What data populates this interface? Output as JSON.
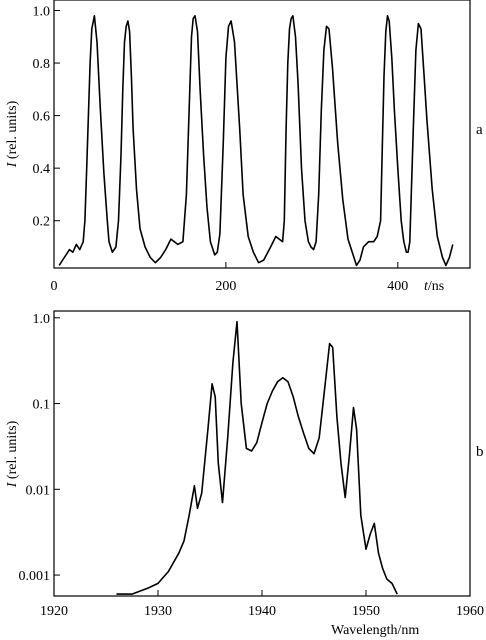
{
  "chart_data": [
    {
      "panel": "a",
      "type": "line",
      "xlabel_italic": "t",
      "xlabel_unit": "/ns",
      "ylabel_italic": "I",
      "ylabel_unit": " (rel. units)",
      "xlim": [
        0,
        484
      ],
      "ylim": [
        0.02,
        1.04
      ],
      "xticks": [
        0,
        200,
        400
      ],
      "yticks": [
        0.2,
        0.4,
        0.6,
        0.8,
        1.0
      ],
      "yticklabels": [
        "0.2",
        "0.4",
        "0.6",
        "0.8",
        "1.0"
      ],
      "series": [
        {
          "x": [
            6,
            12,
            18,
            22,
            26,
            30,
            34,
            36,
            38,
            40,
            42,
            44,
            47,
            50,
            54,
            58,
            62,
            64,
            66,
            68,
            72,
            75,
            78,
            80,
            82,
            84,
            86,
            88,
            90,
            92,
            96,
            100,
            106,
            112,
            118,
            124,
            130,
            136,
            144,
            150,
            154,
            158,
            160,
            162,
            164,
            167,
            170,
            174,
            178,
            182,
            185,
            187,
            190,
            193,
            197,
            200,
            203,
            206,
            210,
            216,
            220,
            226,
            232,
            238,
            244,
            252,
            258,
            262,
            266,
            268,
            270,
            272,
            274,
            276,
            278,
            281,
            284,
            288,
            292,
            296,
            299,
            302,
            305,
            308,
            311,
            314,
            317,
            320,
            324,
            330,
            336,
            342,
            348,
            352,
            356,
            360,
            366,
            372,
            376,
            380,
            382,
            384,
            386,
            388,
            390,
            393,
            396,
            400,
            404,
            407,
            410,
            412,
            414,
            418,
            421,
            424,
            427,
            430,
            434,
            440,
            446,
            452,
            456,
            460,
            464
          ],
          "y": [
            0.03,
            0.06,
            0.09,
            0.08,
            0.11,
            0.09,
            0.12,
            0.2,
            0.4,
            0.6,
            0.8,
            0.93,
            0.98,
            0.88,
            0.62,
            0.38,
            0.2,
            0.12,
            0.1,
            0.08,
            0.1,
            0.2,
            0.45,
            0.7,
            0.88,
            0.94,
            0.96,
            0.92,
            0.75,
            0.55,
            0.32,
            0.17,
            0.1,
            0.06,
            0.04,
            0.06,
            0.09,
            0.13,
            0.11,
            0.12,
            0.3,
            0.7,
            0.9,
            0.97,
            0.98,
            0.92,
            0.7,
            0.45,
            0.25,
            0.12,
            0.09,
            0.07,
            0.08,
            0.15,
            0.5,
            0.82,
            0.94,
            0.96,
            0.88,
            0.55,
            0.3,
            0.14,
            0.08,
            0.04,
            0.05,
            0.1,
            0.14,
            0.13,
            0.12,
            0.2,
            0.55,
            0.8,
            0.93,
            0.97,
            0.98,
            0.9,
            0.72,
            0.4,
            0.2,
            0.12,
            0.1,
            0.09,
            0.12,
            0.3,
            0.62,
            0.85,
            0.94,
            0.93,
            0.78,
            0.5,
            0.28,
            0.13,
            0.07,
            0.03,
            0.05,
            0.1,
            0.12,
            0.12,
            0.14,
            0.2,
            0.48,
            0.75,
            0.92,
            0.98,
            0.96,
            0.82,
            0.62,
            0.4,
            0.2,
            0.12,
            0.08,
            0.08,
            0.12,
            0.55,
            0.85,
            0.95,
            0.93,
            0.78,
            0.58,
            0.32,
            0.14,
            0.06,
            0.03,
            0.06,
            0.11
          ]
        }
      ]
    },
    {
      "panel": "b",
      "type": "line",
      "yscale": "log",
      "xlabel": "Wavelength/nm",
      "ylabel_italic": "I",
      "ylabel_unit": " (rel. units)",
      "xlim": [
        1920,
        1960
      ],
      "ylim": [
        0.00057,
        1.2
      ],
      "xticks": [
        1920,
        1930,
        1940,
        1950,
        1960
      ],
      "yticks": [
        0.001,
        0.01,
        0.1,
        1.0
      ],
      "yticklabels": [
        "0.001",
        "0.01",
        "0.1",
        "1.0"
      ],
      "series": [
        {
          "x": [
            1926.0,
            1927.5,
            1929.0,
            1930.0,
            1931.0,
            1932.0,
            1932.5,
            1933.0,
            1933.5,
            1933.8,
            1934.2,
            1934.8,
            1935.2,
            1935.5,
            1935.8,
            1936.2,
            1936.7,
            1937.2,
            1937.6,
            1938.0,
            1938.5,
            1939.0,
            1939.5,
            1940.0,
            1940.5,
            1941.0,
            1941.5,
            1942.0,
            1942.5,
            1943.0,
            1943.5,
            1944.0,
            1944.5,
            1945.0,
            1945.5,
            1946.0,
            1946.5,
            1946.8,
            1947.2,
            1947.6,
            1948.0,
            1948.4,
            1948.8,
            1949.1,
            1949.5,
            1950.0,
            1950.4,
            1950.8,
            1951.2,
            1951.6,
            1952.0,
            1952.5,
            1953.0
          ],
          "y": [
            0.0006,
            0.0006,
            0.0007,
            0.0008,
            0.0011,
            0.0018,
            0.0025,
            0.005,
            0.011,
            0.006,
            0.009,
            0.05,
            0.17,
            0.12,
            0.02,
            0.007,
            0.04,
            0.3,
            0.9,
            0.1,
            0.03,
            0.028,
            0.035,
            0.06,
            0.1,
            0.14,
            0.18,
            0.2,
            0.18,
            0.12,
            0.07,
            0.045,
            0.03,
            0.026,
            0.04,
            0.14,
            0.5,
            0.45,
            0.07,
            0.02,
            0.008,
            0.025,
            0.09,
            0.05,
            0.005,
            0.002,
            0.003,
            0.004,
            0.0018,
            0.0012,
            0.0009,
            0.0008,
            0.0006
          ]
        }
      ]
    }
  ]
}
